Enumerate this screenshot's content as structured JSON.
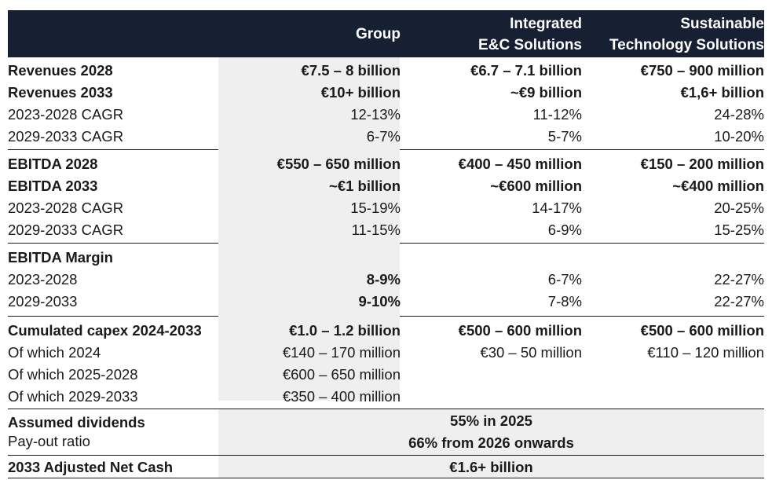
{
  "header": {
    "group": "Group",
    "iec_line1": "Integrated",
    "iec_line2": "E&C Solutions",
    "sts_line1": "Sustainable",
    "sts_line2": "Technology Solutions"
  },
  "revenues": [
    {
      "label": "Revenues 2028",
      "group": "€7.5 – 8 billion",
      "iec": "€6.7 – 7.1 billion",
      "sts": "€750 – 900 million"
    },
    {
      "label": "Revenues 2033",
      "group": "€10+ billion",
      "iec": "~€9 billion",
      "sts": "€1,6+ billion"
    },
    {
      "label": "2023-2028 CAGR",
      "group": "12-13%",
      "iec": "11-12%",
      "sts": "24-28%"
    },
    {
      "label": "2029-2033 CAGR",
      "group": "6-7%",
      "iec": "5-7%",
      "sts": "10-20%"
    }
  ],
  "ebitda": [
    {
      "label": "EBITDA 2028",
      "group": "€550 – 650 million",
      "iec": "€400 – 450 million",
      "sts": "€150 – 200 million"
    },
    {
      "label": "EBITDA 2033",
      "group": "~€1 billion",
      "iec": "~€600 million",
      "sts": "~€400 million"
    },
    {
      "label": "2023-2028 CAGR",
      "group": "15-19%",
      "iec": "14-17%",
      "sts": "20-25%"
    },
    {
      "label": "2029-2033 CAGR",
      "group": "11-15%",
      "iec": "6-9%",
      "sts": "15-25%"
    }
  ],
  "margin": [
    {
      "label": "EBITDA Margin",
      "group": "",
      "iec": "",
      "sts": ""
    },
    {
      "label": "2023-2028",
      "group": "8-9%",
      "iec": "6-7%",
      "sts": "22-27%"
    },
    {
      "label": "2029-2033",
      "group": "9-10%",
      "iec": "7-8%",
      "sts": "22-27%"
    }
  ],
  "capex": [
    {
      "label": "Cumulated capex 2024-2033",
      "group": "€1.0 – 1.2 billion",
      "iec": "€500 – 600 million",
      "sts": "€500 – 600 million"
    },
    {
      "label": "Of which 2024",
      "group": "€140 – 170 million",
      "iec": "€30 – 50 million",
      "sts": "€110 – 120 million"
    },
    {
      "label": "Of which 2025-2028",
      "group": "€600 – 650 million",
      "iec": "",
      "sts": ""
    },
    {
      "label": "Of which 2029-2033",
      "group": "€350 – 400 million",
      "iec": "",
      "sts": ""
    }
  ],
  "dividends": {
    "label": "Assumed dividends",
    "sublabel": "Pay-out ratio",
    "line1": "55% in 2025",
    "line2": "66% from 2026 onwards"
  },
  "net_cash": {
    "label": "2033 Adjusted Net Cash",
    "value": "€1.6+ billion"
  }
}
